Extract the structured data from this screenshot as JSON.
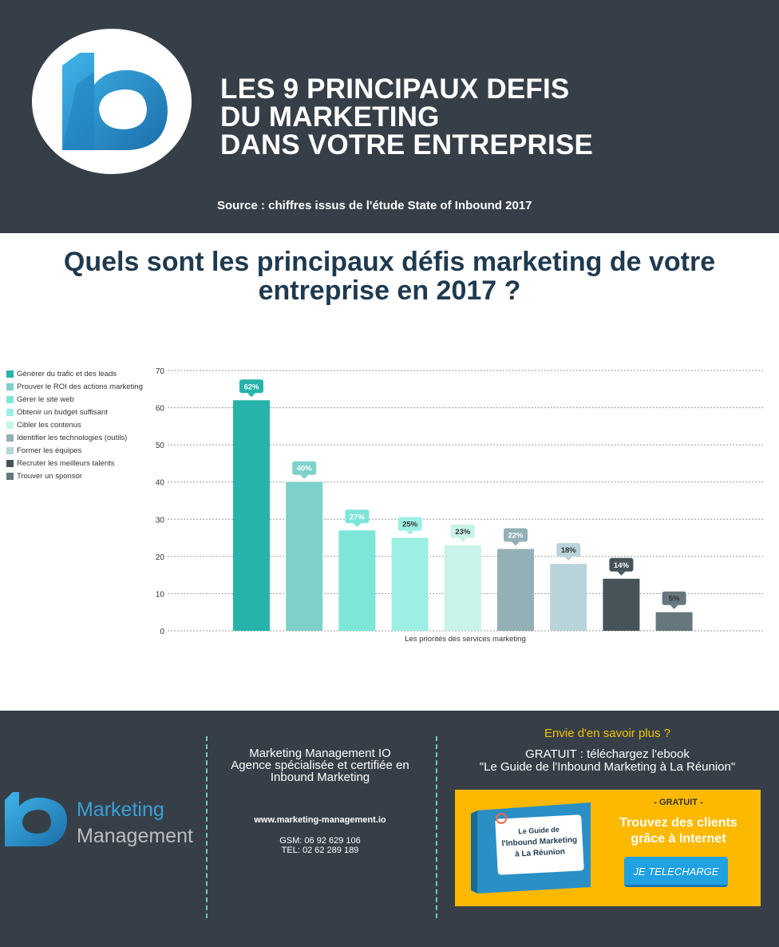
{
  "header": {
    "title_lines": [
      "LES 9 PRINCIPAUX DEFIS",
      "DU MARKETING",
      "DANS VOTRE ENTREPRISE"
    ],
    "source": "Source : chiffres issus de l'étude State of Inbound 2017"
  },
  "question": "Quels sont les principaux défis marketing de votre entreprise en 2017 ?",
  "chart_data": {
    "type": "bar",
    "title": "",
    "xlabel": "Les priorités des services marketing",
    "ylabel": "",
    "ylim": [
      0,
      70
    ],
    "yticks": [
      "0",
      "10",
      "20",
      "30",
      "40",
      "50",
      "60",
      "70"
    ],
    "grid": true,
    "legend_position": "left",
    "categories": [
      "Générer du trafic et des leads",
      "Prouver le ROI des actions marketing",
      "Gérer le site web",
      "Obtenir un budget suffisant",
      "Cibler les contenus",
      "Identifier les technologies (outils)",
      "Former les équipes",
      "Recruter les meilleurs talents",
      "Trouver un sponsor"
    ],
    "values": [
      62,
      40,
      27,
      25,
      23,
      22,
      18,
      14,
      5
    ],
    "data_labels": [
      "62%",
      "40%",
      "27%",
      "25%",
      "23%",
      "22%",
      "18%",
      "14%",
      "5%"
    ],
    "colors": [
      "#26b3a9",
      "#7dd1ca",
      "#7ee6d8",
      "#9bf0e3",
      "#c7f3ea",
      "#93b0b6",
      "#b8d4da",
      "#46545a",
      "#66777d"
    ],
    "label_text_dark": [
      false,
      false,
      false,
      true,
      true,
      false,
      true,
      false,
      true
    ]
  },
  "footer": {
    "brand_1": "Marketing",
    "brand_2": "Management",
    "company_lines": [
      "Marketing Management IO",
      "Agence spécialisée et certifiée en",
      "Inbound Marketing"
    ],
    "website": "www.marketing-management.io",
    "gsm": "GSM: 06 92 629 106",
    "tel": "TEL: 02 62 289 189",
    "envie": "Envie d'en savoir plus ?",
    "gratuit_line": "GRATUIT : téléchargez l'ebook",
    "ebook_title": "\"Le Guide de l'Inbound Marketing à La Réunion\"",
    "promo": {
      "gratuit": "- GRATUIT -",
      "headline_1": "Trouvez des clients",
      "headline_2": "grâce à Internet",
      "button": "JE TELECHARGE",
      "book_title": [
        "Le Guide de",
        "l'Inbound Marketing",
        "à La Réunion"
      ]
    }
  }
}
